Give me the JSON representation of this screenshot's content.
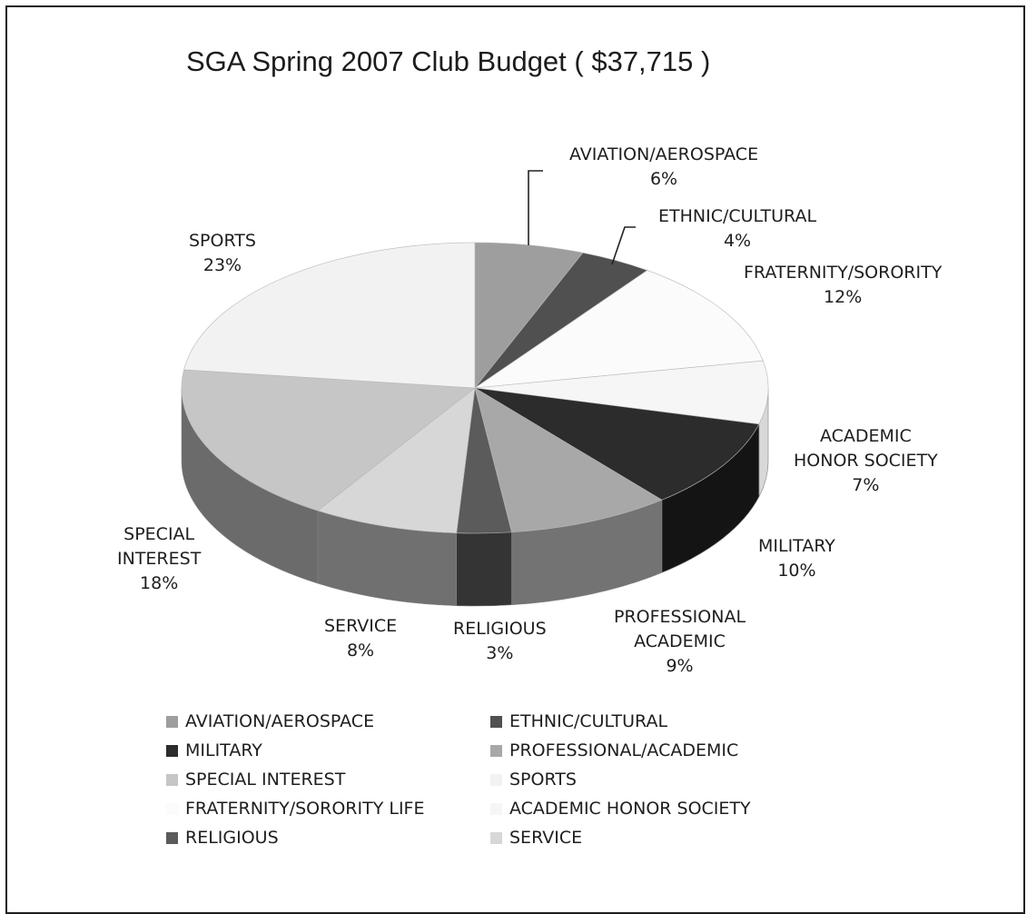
{
  "chart_data": {
    "type": "pie",
    "style": "3d",
    "title": "SGA Spring 2007 Club Budget ( $37,715 )",
    "slices": [
      {
        "key": "aviation",
        "legend": "AVIATION/AEROSPACE",
        "label_lines": [
          "AVIATION/AEROSPACE",
          "6%"
        ],
        "value": 6,
        "value_label": "6%",
        "color": "#9e9e9e",
        "side": "#6f6f6f"
      },
      {
        "key": "ethnic",
        "legend": "ETHNIC/CULTURAL",
        "label_lines": [
          "ETHNIC/CULTURAL",
          "4%"
        ],
        "value": 4,
        "value_label": "4%",
        "color": "#505050",
        "side": "#303030"
      },
      {
        "key": "fraternity",
        "legend": "FRATERNITY/SORORITY LIFE",
        "label_lines": [
          "FRATERNITY/SORORITY",
          "12%"
        ],
        "value": 12,
        "value_label": "12%",
        "color": "#fbfbfb",
        "side": "#e2e2e2"
      },
      {
        "key": "honor",
        "legend": "ACADEMIC HONOR SOCIETY",
        "label_lines": [
          "ACADEMIC",
          "HONOR SOCIETY",
          "7%"
        ],
        "value": 7,
        "value_label": "7%",
        "color": "#f6f6f6",
        "side": "#d8d8d8"
      },
      {
        "key": "military",
        "legend": "MILITARY",
        "label_lines": [
          "MILITARY",
          "10%"
        ],
        "value": 10,
        "value_label": "10%",
        "color": "#2c2c2c",
        "side": "#141414"
      },
      {
        "key": "professional",
        "legend": "PROFESSIONAL/ACADEMIC",
        "label_lines": [
          "PROFESSIONAL",
          "ACADEMIC",
          "9%"
        ],
        "value": 9,
        "value_label": "9%",
        "color": "#a8a8a8",
        "side": "#737373"
      },
      {
        "key": "religious",
        "legend": "RELIGIOUS",
        "label_lines": [
          "RELIGIOUS",
          "3%"
        ],
        "value": 3,
        "value_label": "3%",
        "color": "#5b5b5b",
        "side": "#343434"
      },
      {
        "key": "service",
        "legend": "SERVICE",
        "label_lines": [
          "SERVICE",
          "8%"
        ],
        "value": 8,
        "value_label": "8%",
        "color": "#d7d7d7",
        "side": "#707070"
      },
      {
        "key": "special",
        "legend": "SPECIAL INTEREST",
        "label_lines": [
          "SPECIAL",
          "INTEREST",
          "18%"
        ],
        "value": 18,
        "value_label": "18%",
        "color": "#c6c6c6",
        "side": "#6b6b6b"
      },
      {
        "key": "sports",
        "legend": "SPORTS",
        "label_lines": [
          "SPORTS",
          "23%"
        ],
        "value": 23,
        "value_label": "23%",
        "color": "#f2f2f2",
        "side": "#dcdcdc"
      }
    ],
    "legend_order": [
      "aviation",
      "ethnic",
      "military",
      "professional",
      "special",
      "sports",
      "fraternity",
      "honor",
      "religious",
      "service"
    ],
    "legend_placement": "bottom",
    "legend_columns": 2
  }
}
